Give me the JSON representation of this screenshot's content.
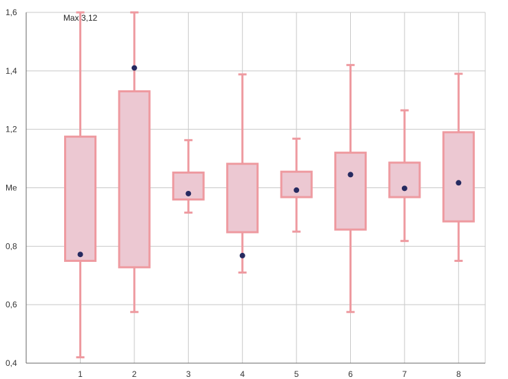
{
  "chart_data": {
    "type": "boxplot",
    "ylim": [
      0.4,
      1.6
    ],
    "ytick_labels": [
      {
        "value": 0.4,
        "label": "0,4"
      },
      {
        "value": 0.6,
        "label": "0,6"
      },
      {
        "value": 0.8,
        "label": "0,8"
      },
      {
        "value": 1.0,
        "label": "Me"
      },
      {
        "value": 1.2,
        "label": "1,2"
      },
      {
        "value": 1.4,
        "label": "1,4"
      },
      {
        "value": 1.6,
        "label": "1,6"
      }
    ],
    "categories": [
      "1",
      "2",
      "3",
      "4",
      "5",
      "6",
      "7",
      "8"
    ],
    "boxes": [
      {
        "category": "1",
        "whisker_low": 0.42,
        "q1": 0.75,
        "q3": 1.175,
        "whisker_high": 1.6,
        "point": 0.772
      },
      {
        "category": "2",
        "whisker_low": 0.575,
        "q1": 0.728,
        "q3": 1.33,
        "whisker_high": 1.6,
        "point": 1.41
      },
      {
        "category": "3",
        "whisker_low": 0.915,
        "q1": 0.96,
        "q3": 1.052,
        "whisker_high": 1.163,
        "point": 0.98
      },
      {
        "category": "4",
        "whisker_low": 0.71,
        "q1": 0.848,
        "q3": 1.082,
        "whisker_high": 1.388,
        "point": 0.768
      },
      {
        "category": "5",
        "whisker_low": 0.85,
        "q1": 0.968,
        "q3": 1.055,
        "whisker_high": 1.168,
        "point": 0.992
      },
      {
        "category": "6",
        "whisker_low": 0.575,
        "q1": 0.857,
        "q3": 1.12,
        "whisker_high": 1.42,
        "point": 1.045
      },
      {
        "category": "7",
        "whisker_low": 0.818,
        "q1": 0.968,
        "q3": 1.086,
        "whisker_high": 1.265,
        "point": 0.998
      },
      {
        "category": "8",
        "whisker_low": 0.75,
        "q1": 0.885,
        "q3": 1.19,
        "whisker_high": 1.39,
        "point": 1.017
      }
    ],
    "annotation": "Max 3,12",
    "grid": true,
    "colors": {
      "box_fill": "#ecc8d2",
      "box_stroke": "#ee9aa0",
      "point": "#262a60",
      "grid": "#c8c8c8",
      "axis": "#666666"
    }
  }
}
